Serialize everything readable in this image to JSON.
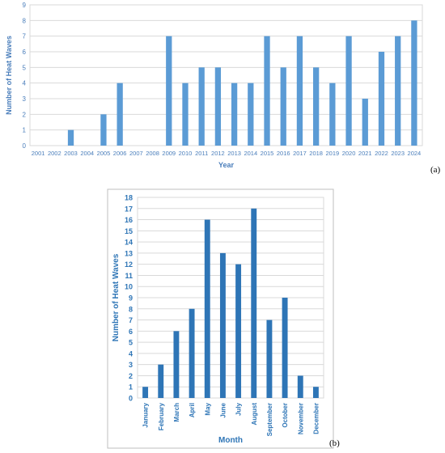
{
  "chart_data": [
    {
      "type": "bar",
      "panel_label": "(a)",
      "xlabel": "Year",
      "ylabel": "Number of Heat Waves",
      "ylim": [
        0,
        9
      ],
      "yticks": [
        0,
        1,
        2,
        3,
        4,
        5,
        6,
        7,
        8,
        9
      ],
      "grid": true,
      "categories": [
        "2001",
        "2002",
        "2003",
        "2004",
        "2005",
        "2006",
        "2007",
        "2008",
        "2009",
        "2010",
        "2011",
        "2012",
        "2013",
        "2014",
        "2015",
        "2016",
        "2017",
        "2018",
        "2019",
        "2020",
        "2021",
        "2022",
        "2023",
        "2024"
      ],
      "values": [
        0,
        0,
        1,
        0,
        2,
        4,
        0,
        0,
        7,
        4,
        5,
        5,
        4,
        4,
        7,
        5,
        7,
        5,
        4,
        7,
        3,
        6,
        7,
        8
      ],
      "bar_color": "#5b9bd5",
      "text_color": "#4a7ebb"
    },
    {
      "type": "bar",
      "panel_label": "(b)",
      "xlabel": "Month",
      "ylabel": "Number of Heat Waves",
      "ylim": [
        0,
        18
      ],
      "yticks": [
        0,
        1,
        2,
        3,
        4,
        5,
        6,
        7,
        8,
        9,
        10,
        11,
        12,
        13,
        14,
        15,
        16,
        17,
        18
      ],
      "grid": true,
      "categories": [
        "January",
        "February",
        "March",
        "April",
        "May",
        "June",
        "July",
        "August",
        "September",
        "October",
        "November",
        "December"
      ],
      "values": [
        1,
        3,
        6,
        8,
        16,
        13,
        12,
        17,
        7,
        9,
        2,
        1
      ],
      "bar_color": "#2e75b6",
      "text_color": "#2e75b6"
    }
  ]
}
